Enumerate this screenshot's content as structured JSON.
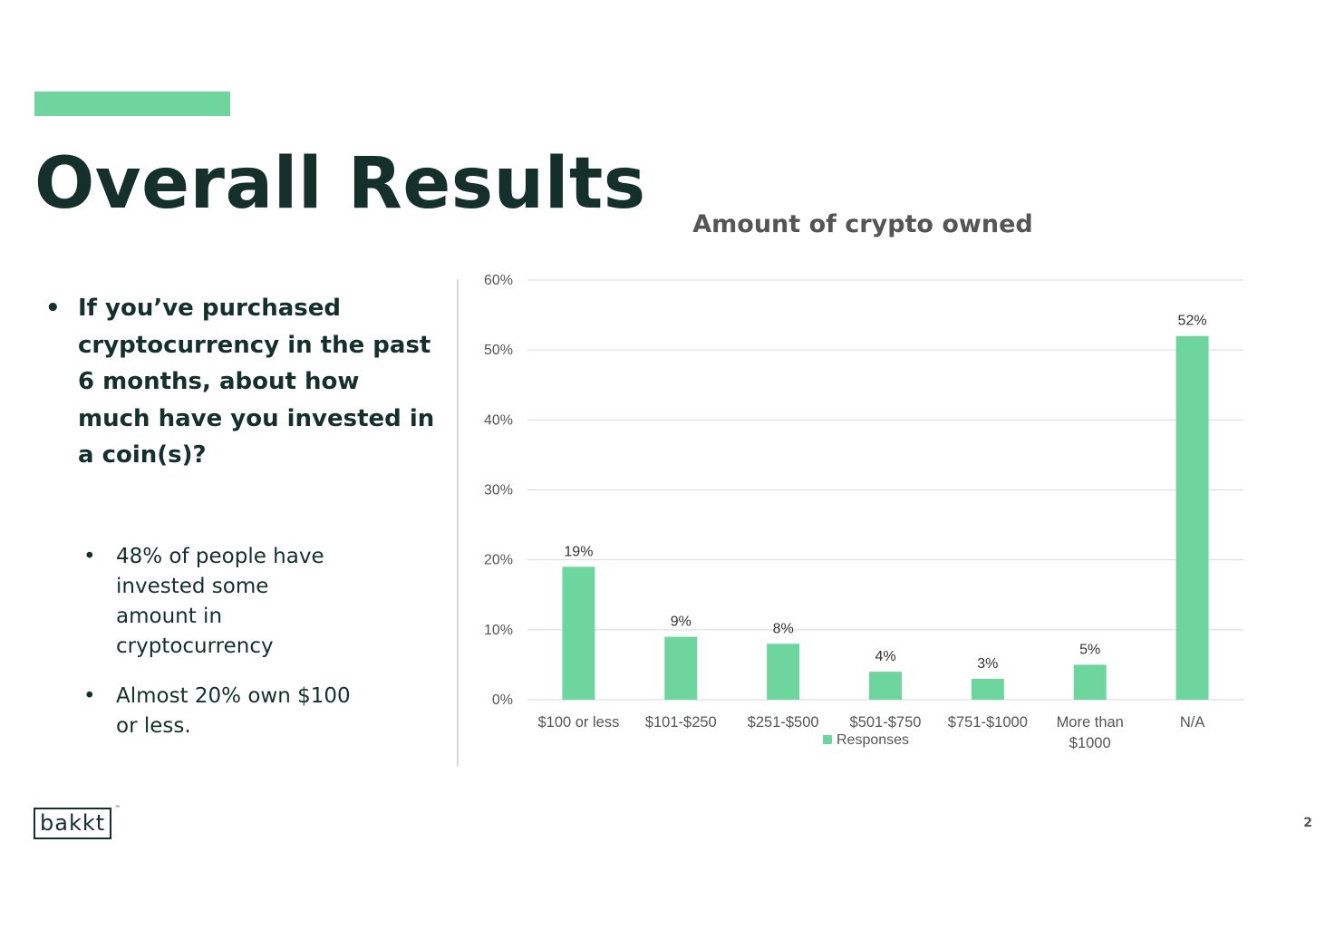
{
  "slide": {
    "title": "Overall Results",
    "question": "If you’ve purchased cryptocurrency in the past 6 months, about how much have you invested in a coin(s)?",
    "findings": [
      "48% of people have invested some amount in cryptocurrency",
      "Almost 20% own $100 or less."
    ],
    "page_number": "2",
    "logo_text": "bakkt",
    "logo_mark": "™"
  },
  "colors": {
    "accent": "#6fd59f",
    "title_text": "#15302a",
    "bar": "#6fd59f"
  },
  "chart_data": {
    "type": "bar",
    "title": "Amount of crypto owned",
    "categories": [
      [
        "$100 or less"
      ],
      [
        "$101-$250"
      ],
      [
        "$251-$500"
      ],
      [
        "$501-$750"
      ],
      [
        "$751-$1000"
      ],
      [
        "More than",
        "$1000"
      ],
      [
        "N/A"
      ]
    ],
    "series": [
      {
        "name": "Responses",
        "values": [
          19,
          9,
          8,
          4,
          3,
          5,
          52
        ],
        "labels": [
          "19%",
          "9%",
          "8%",
          "4%",
          "3%",
          "5%",
          "52%"
        ]
      }
    ],
    "ylim": [
      0,
      60
    ],
    "yticks": [
      0,
      10,
      20,
      30,
      40,
      50,
      60
    ],
    "ytick_labels": [
      "0%",
      "10%",
      "20%",
      "30%",
      "40%",
      "50%",
      "60%"
    ],
    "xlabel": "",
    "ylabel": "",
    "grid": true,
    "legend": "bottom"
  }
}
